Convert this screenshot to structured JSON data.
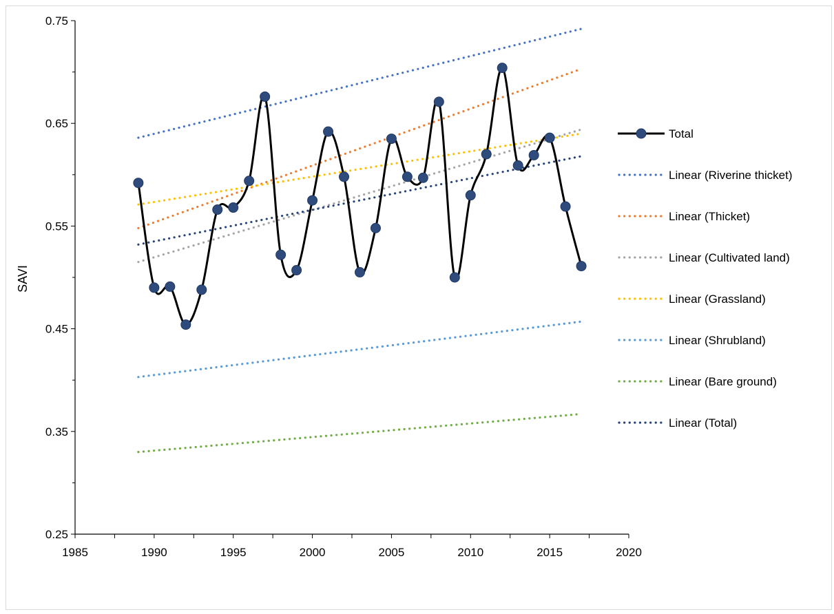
{
  "chart_data": {
    "type": "line",
    "title": "",
    "xlabel": "",
    "ylabel": "SAVI",
    "xlim": [
      1985,
      2020
    ],
    "ylim": [
      0.25,
      0.75
    ],
    "x_ticks": [
      1985,
      1990,
      1995,
      2000,
      2005,
      2010,
      2015,
      2020
    ],
    "x_tick_labels": [
      "1985",
      "1990",
      "1995",
      "2000",
      "2005",
      "2010",
      "2015",
      "2020"
    ],
    "y_ticks": [
      0.25,
      0.35,
      0.45,
      0.55,
      0.65,
      0.75
    ],
    "y_tick_labels": [
      "0.25",
      "0.35",
      "0.45",
      "0.55",
      "0.65",
      "0.75"
    ],
    "grid": false,
    "legend_position": "right",
    "series": [
      {
        "name": "Total",
        "kind": "line-markers",
        "color": "#000000",
        "marker_color": "#2f4b7c",
        "x": [
          1989,
          1990,
          1991,
          1992,
          1993,
          1994,
          1995,
          1996,
          1997,
          1998,
          1999,
          2000,
          2001,
          2002,
          2003,
          2004,
          2005,
          2006,
          2007,
          2008,
          2009,
          2010,
          2011,
          2012,
          2013,
          2014,
          2015,
          2016,
          2017
        ],
        "y": [
          0.592,
          0.49,
          0.491,
          0.454,
          0.488,
          0.566,
          0.568,
          0.594,
          0.676,
          0.522,
          0.507,
          0.575,
          0.642,
          0.598,
          0.505,
          0.548,
          0.635,
          0.598,
          0.597,
          0.671,
          0.5,
          0.58,
          0.62,
          0.704,
          0.609,
          0.619,
          0.636,
          0.569,
          0.511
        ]
      },
      {
        "name": "Linear (Riverine thicket)",
        "kind": "trendline",
        "color": "#4472c4",
        "x": [
          1989,
          2017
        ],
        "y": [
          0.636,
          0.742
        ]
      },
      {
        "name": "Linear (Thicket)",
        "kind": "trendline",
        "color": "#ed7d31",
        "x": [
          1989,
          2017
        ],
        "y": [
          0.548,
          0.703
        ]
      },
      {
        "name": "Linear (Cultivated land)",
        "kind": "trendline",
        "color": "#a5a5a5",
        "x": [
          1989,
          2017
        ],
        "y": [
          0.515,
          0.644
        ]
      },
      {
        "name": "Linear (Grassland)",
        "kind": "trendline",
        "color": "#ffc000",
        "x": [
          1989,
          2017
        ],
        "y": [
          0.571,
          0.64
        ]
      },
      {
        "name": "Linear (Shrubland)",
        "kind": "trendline",
        "color": "#5b9bd5",
        "x": [
          1989,
          2017
        ],
        "y": [
          0.403,
          0.457
        ]
      },
      {
        "name": "Linear (Bare ground)",
        "kind": "trendline",
        "color": "#70ad47",
        "x": [
          1989,
          2017
        ],
        "y": [
          0.33,
          0.367
        ]
      },
      {
        "name": "Linear (Total)",
        "kind": "trendline",
        "color": "#264478",
        "x": [
          1989,
          2017
        ],
        "y": [
          0.532,
          0.618
        ]
      }
    ]
  }
}
